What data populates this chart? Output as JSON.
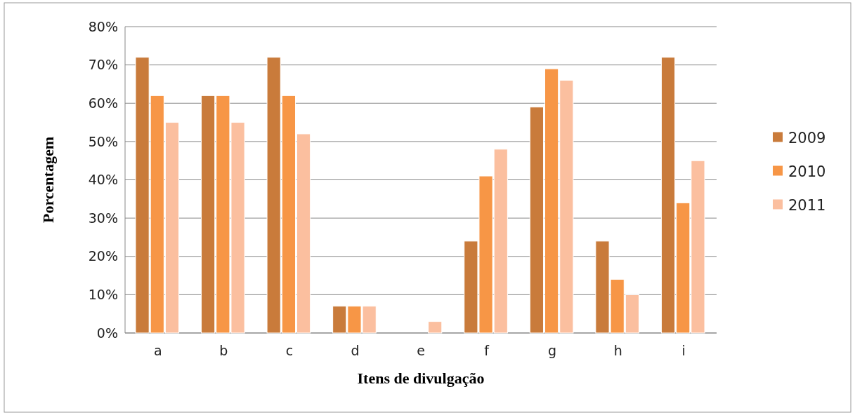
{
  "chart_data": {
    "type": "bar",
    "xlabel": "Itens de divulgação",
    "ylabel": "Porcentagem",
    "categories": [
      "a",
      "b",
      "c",
      "d",
      "e",
      "f",
      "g",
      "h",
      "i"
    ],
    "series": [
      {
        "name": "2009",
        "color": "#c97b3b",
        "values": [
          72,
          62,
          72,
          7,
          0,
          24,
          59,
          24,
          72
        ]
      },
      {
        "name": "2010",
        "color": "#f79646",
        "values": [
          62,
          62,
          62,
          7,
          0,
          41,
          69,
          14,
          34
        ]
      },
      {
        "name": "2011",
        "color": "#fbbf9f",
        "values": [
          55,
          55,
          52,
          7,
          3,
          48,
          66,
          10,
          45
        ]
      }
    ],
    "ylim": [
      0,
      80
    ],
    "yticks": [
      {
        "value": 0,
        "label": "0%"
      },
      {
        "value": 10,
        "label": "10%"
      },
      {
        "value": 20,
        "label": "20%"
      },
      {
        "value": 30,
        "label": "30%"
      },
      {
        "value": 40,
        "label": "40%"
      },
      {
        "value": 50,
        "label": "50%"
      },
      {
        "value": 60,
        "label": "60%"
      },
      {
        "value": 70,
        "label": "70%"
      },
      {
        "value": 80,
        "label": "80%"
      }
    ],
    "grid": "y",
    "legend": "right"
  }
}
